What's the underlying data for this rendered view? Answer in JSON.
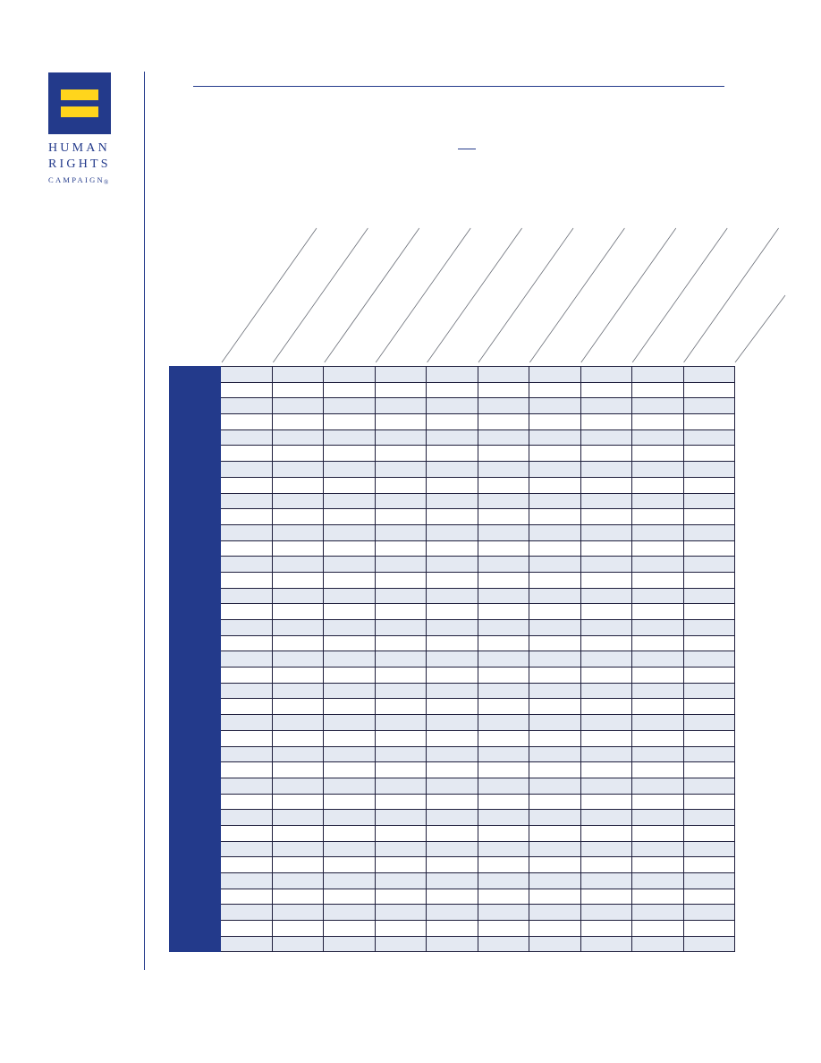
{
  "brand": {
    "name_line1": "HUMAN",
    "name_line2": "RIGHTS",
    "name_line3": "CAMPAIGN",
    "registered_mark": "®",
    "primary_color": "#233a8b",
    "accent_color": "#ffd51c",
    "logo_icon": "equal-sign-logo"
  },
  "table": {
    "row_count": 37,
    "column_count": 10,
    "column_headers": [
      "",
      "",
      "",
      "",
      "",
      "",
      "",
      "",
      "",
      ""
    ],
    "row_header_color": "#233a8b",
    "shaded_row_color": "#e4e9f2",
    "plain_row_color": "#ffffff"
  }
}
